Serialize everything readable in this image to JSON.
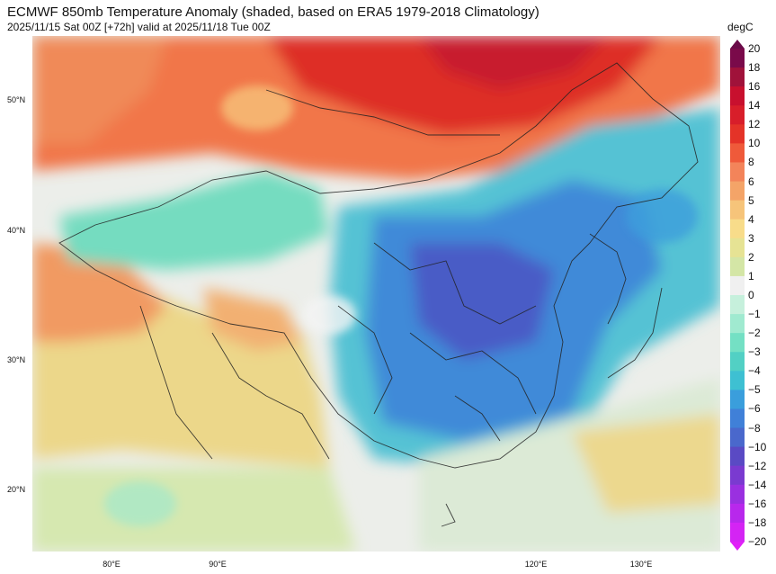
{
  "header": {
    "title": "ECMWF 850mb Temperature Anomaly (shaded, based on ERA5 1979-2018 Climatology)",
    "subtitle": "2025/11/15 Sat 00Z [+72h] valid at 2025/11/18 Tue 00Z"
  },
  "axes": {
    "lat_labels": [
      "50°N",
      "40°N",
      "30°N",
      "20°N"
    ],
    "lon_labels": [
      "80°E",
      "90°E",
      "120°E",
      "130°E"
    ]
  },
  "colorbar": {
    "unit": "degC",
    "labels": [
      "20",
      "18",
      "16",
      "14",
      "12",
      "10",
      "8",
      "6",
      "5",
      "4",
      "3",
      "2",
      "1",
      "0",
      "−1",
      "−2",
      "−3",
      "−4",
      "−5",
      "−6",
      "−8",
      "−10",
      "−12",
      "−14",
      "−16",
      "−18",
      "−20"
    ],
    "colors": [
      "#7a0a4a",
      "#a0123a",
      "#c8102e",
      "#d81e2a",
      "#e43328",
      "#ef5a3a",
      "#f3845a",
      "#f4a468",
      "#f6c47a",
      "#f8dc8a",
      "#e6e394",
      "#d4e6a6",
      "#f0f0f0",
      "#c6f0dc",
      "#a0ead0",
      "#74e0c4",
      "#52d0c4",
      "#3ec0d2",
      "#3a9edc",
      "#4080d8",
      "#4a68cc",
      "#5a4ac4",
      "#7a3ad0",
      "#9a30e0",
      "#b828ec",
      "#d424f4"
    ]
  }
}
